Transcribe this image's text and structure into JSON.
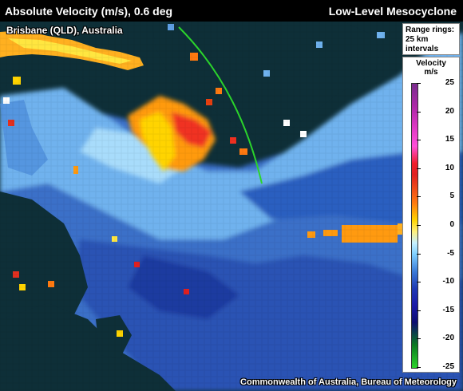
{
  "header": {
    "title_left": "Absolute Velocity (m/s), 0.6 deg",
    "title_right": "Low-Level Mesocyclone"
  },
  "location": "Brisbane (QLD), Australia",
  "range_rings": {
    "line1": "Range rings:",
    "line2": "25 km",
    "line3": "intervals"
  },
  "legend": {
    "title": "Velocity",
    "unit": "m/s",
    "ticks": [
      "25",
      "20",
      "15",
      "10",
      "5",
      "0",
      "-5",
      "-10",
      "-15",
      "-20",
      "-25"
    ]
  },
  "credit": "Commonwealth of Australia, Bureau of Meteorology",
  "colors": {
    "background": "#0e2f38",
    "inbound_strong": "#1a1aa8",
    "inbound_weak": "#7fd0ff",
    "outbound": "#ff7a10",
    "range_ring": "#2bd42b"
  }
}
